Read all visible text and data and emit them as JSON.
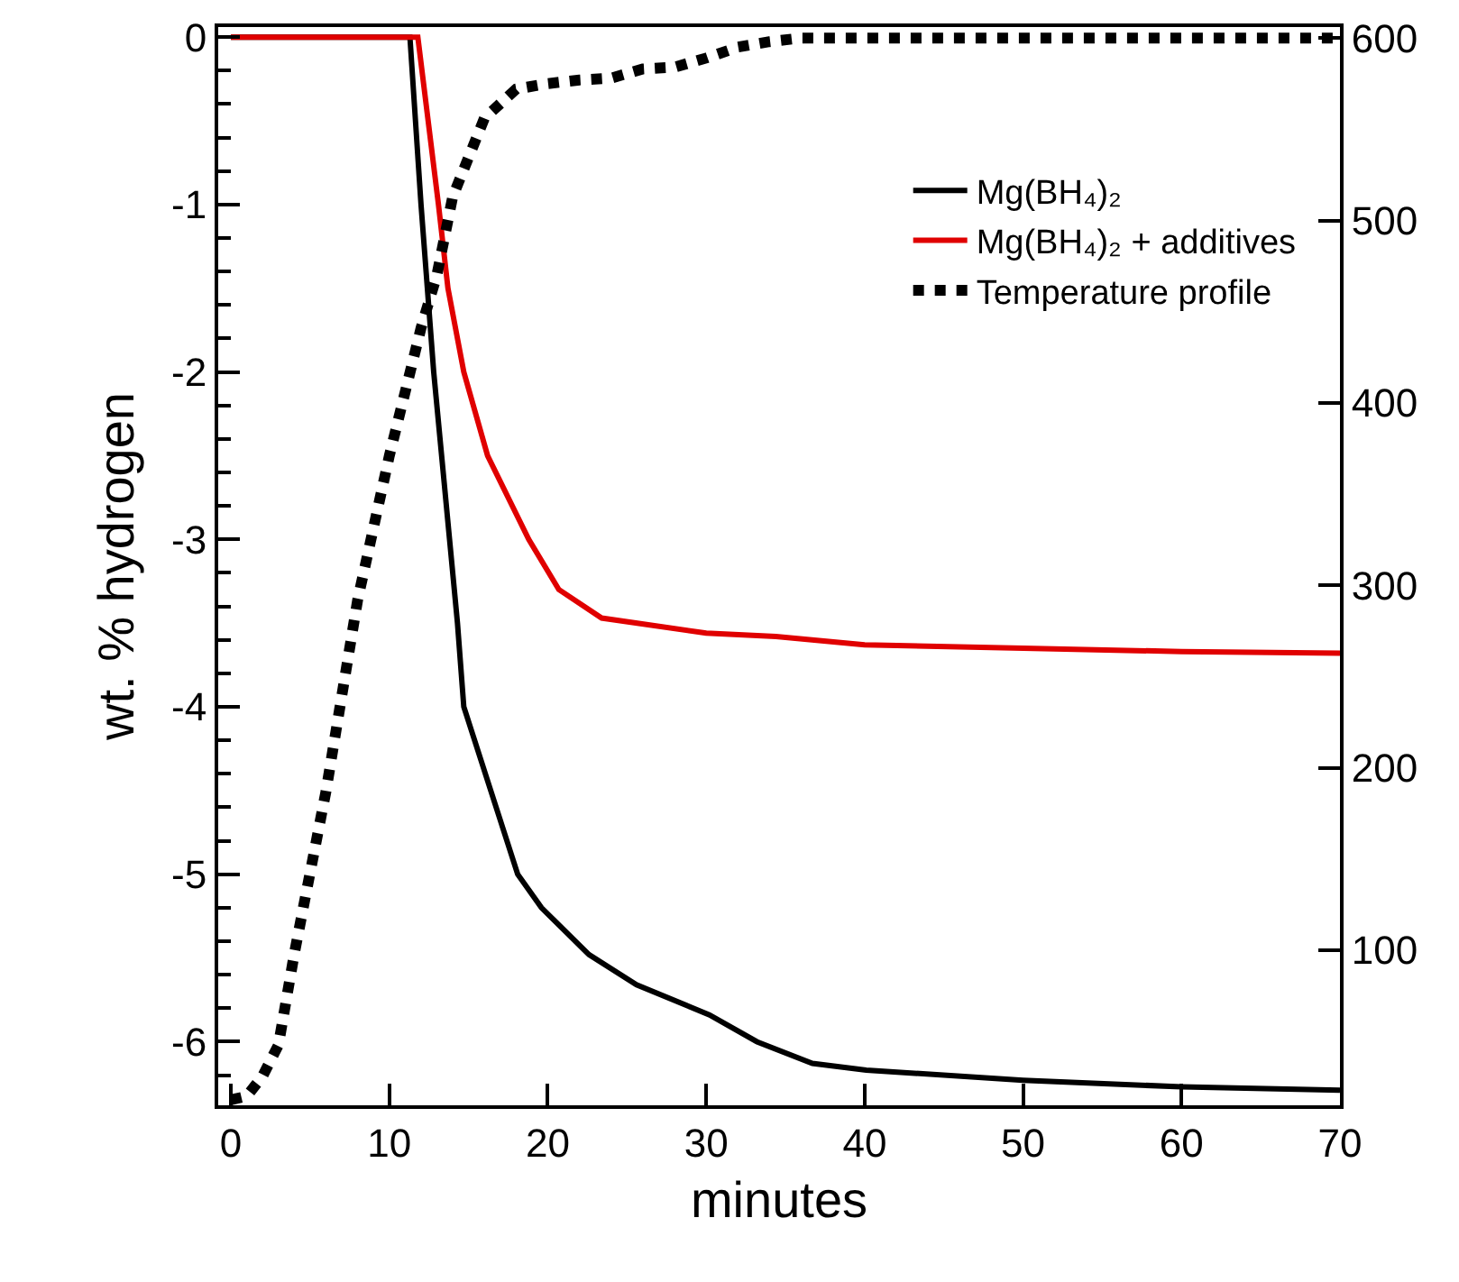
{
  "chart_data": {
    "type": "line",
    "xlabel": "minutes",
    "ylabel": "wt. % hydrogen",
    "xlim": [
      -0.8,
      70
    ],
    "xticks": [
      0,
      10,
      20,
      30,
      40,
      50,
      60,
      70
    ],
    "ylim": [
      -6.38,
      0.06
    ],
    "yticks": [
      {
        "value": -6.2,
        "label": null
      },
      -6,
      {
        "value": -5.8,
        "label": null
      },
      {
        "value": -5.6,
        "label": null
      },
      {
        "value": -5.4,
        "label": null
      },
      {
        "value": -5.2,
        "label": null
      },
      -5,
      {
        "value": -4.8,
        "label": null
      },
      {
        "value": -4.6,
        "label": null
      },
      {
        "value": -4.4,
        "label": null
      },
      {
        "value": -4.2,
        "label": null
      },
      -4,
      {
        "value": -3.8,
        "label": null
      },
      {
        "value": -3.6,
        "label": null
      },
      {
        "value": -3.4,
        "label": null
      },
      {
        "value": -3.2,
        "label": null
      },
      -3,
      {
        "value": -2.8,
        "label": null
      },
      {
        "value": -2.6,
        "label": null
      },
      {
        "value": -2.4,
        "label": null
      },
      {
        "value": -2.2,
        "label": null
      },
      -2,
      {
        "value": -1.8,
        "label": null
      },
      {
        "value": -1.6,
        "label": null
      },
      {
        "value": -1.4,
        "label": null
      },
      {
        "value": -1.2,
        "label": null
      },
      -1,
      {
        "value": -0.8,
        "label": null
      },
      {
        "value": -0.6,
        "label": null
      },
      {
        "value": -0.4,
        "label": null
      },
      {
        "value": -0.2,
        "label": null
      },
      0
    ],
    "y2lim": [
      15,
      606
    ],
    "y2ticks": [
      100,
      200,
      300,
      400,
      500,
      600
    ],
    "grid": false,
    "legend": "top right",
    "series": [
      {
        "name": "Mg(BH₄)₂",
        "color": "#000000",
        "x": [
          0,
          11.3,
          12,
          12.8,
          13.8,
          14.3,
          14.7,
          16.4,
          18.1,
          19.6,
          22.6,
          25.6,
          30.2,
          33.2,
          36.7,
          40.1,
          50,
          60,
          70
        ],
        "values": [
          0,
          0,
          -1,
          -2,
          -3,
          -3.5,
          -4,
          -4.5,
          -5,
          -5.2,
          -5.48,
          -5.66,
          -5.84,
          -6,
          -6.13,
          -6.17,
          -6.23,
          -6.27,
          -6.29
        ]
      },
      {
        "name": "Mg(BH₄)₂ + additives",
        "color": "#e00000",
        "x": [
          0,
          11.8,
          13.1,
          13.7,
          14.7,
          16.2,
          18.8,
          20.7,
          23.4,
          30,
          34.4,
          40,
          50,
          60,
          70
        ],
        "values": [
          0,
          0,
          -1,
          -1.5,
          -2,
          -2.5,
          -3,
          -3.3,
          -3.47,
          -3.56,
          -3.58,
          -3.63,
          -3.65,
          -3.67,
          -3.68
        ]
      },
      {
        "name": "Temperature profile",
        "color": "#000000",
        "axis": "y2",
        "line_style": "dotted",
        "x": [
          0,
          1,
          2,
          3,
          4,
          6,
          8,
          10,
          12,
          13,
          14,
          16,
          18,
          20,
          22,
          24,
          26,
          28,
          30,
          32,
          34,
          36,
          40,
          50,
          60,
          70
        ],
        "values": [
          18,
          20,
          31,
          48,
          98,
          187,
          292,
          371,
          441,
          470,
          513,
          556,
          572,
          575,
          577,
          578,
          583,
          584,
          589,
          595,
          598,
          600,
          600,
          600,
          600,
          600
        ]
      }
    ]
  }
}
